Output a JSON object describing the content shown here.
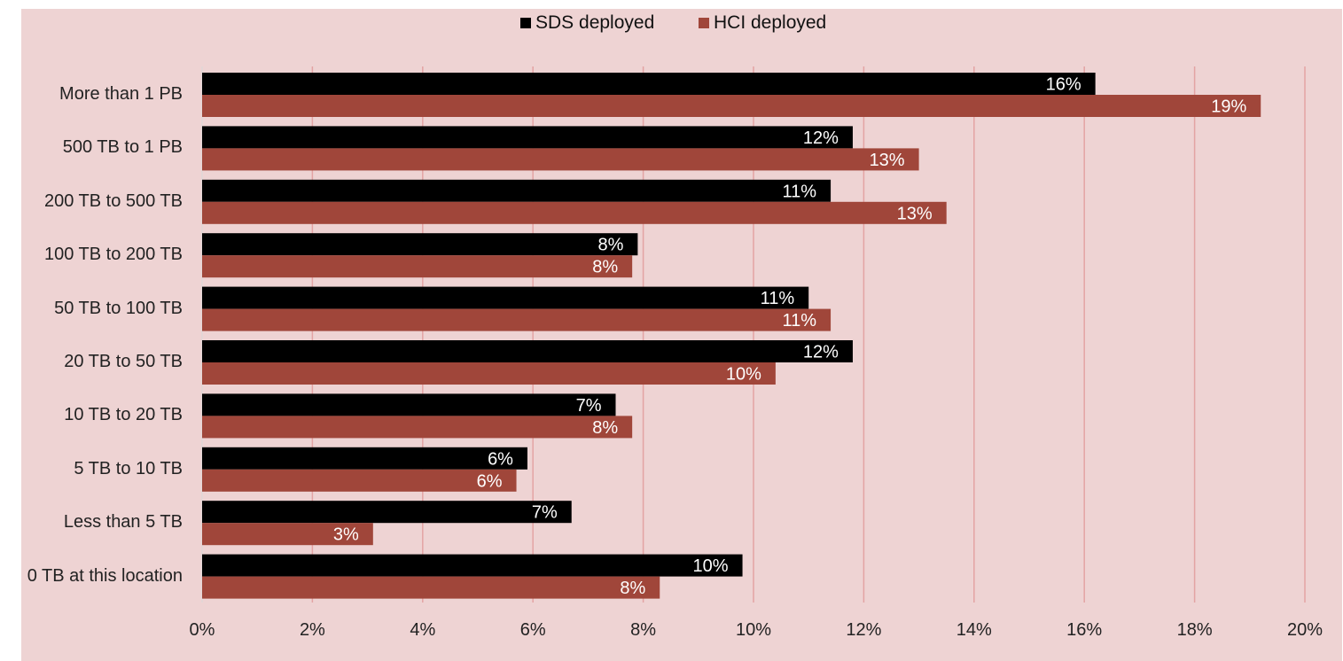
{
  "chart_data": {
    "type": "bar",
    "orientation": "horizontal",
    "categories": [
      "More than 1 PB",
      "500 TB to 1 PB",
      "200 TB to 500 TB",
      "100 TB to 200 TB",
      "50 TB to 100 TB",
      "20 TB to 50 TB",
      "10 TB to 20 TB",
      "5 TB to 10 TB",
      "Less than 5 TB",
      "0 TB at this location"
    ],
    "series": [
      {
        "name": "SDS deployed",
        "color": "#000000",
        "values": [
          16.2,
          11.8,
          11.4,
          7.9,
          11.0,
          11.8,
          7.5,
          5.9,
          6.7,
          9.8
        ],
        "labels": [
          "16%",
          "12%",
          "11%",
          "8%",
          "11%",
          "12%",
          "7%",
          "6%",
          "7%",
          "10%"
        ]
      },
      {
        "name": "HCI deployed",
        "color": "#a0463a",
        "values": [
          19.2,
          13.0,
          13.5,
          7.8,
          11.4,
          10.4,
          7.8,
          5.7,
          3.1,
          8.3
        ],
        "labels": [
          "19%",
          "13%",
          "13%",
          "8%",
          "11%",
          "10%",
          "8%",
          "6%",
          "3%",
          "8%"
        ]
      }
    ],
    "xticks": [
      "0%",
      "2%",
      "4%",
      "6%",
      "8%",
      "10%",
      "12%",
      "14%",
      "16%",
      "18%",
      "20%"
    ],
    "xlim": [
      0,
      20
    ],
    "grid": "vertical",
    "legend": "top-center",
    "title": "",
    "xlabel": "",
    "ylabel": ""
  }
}
